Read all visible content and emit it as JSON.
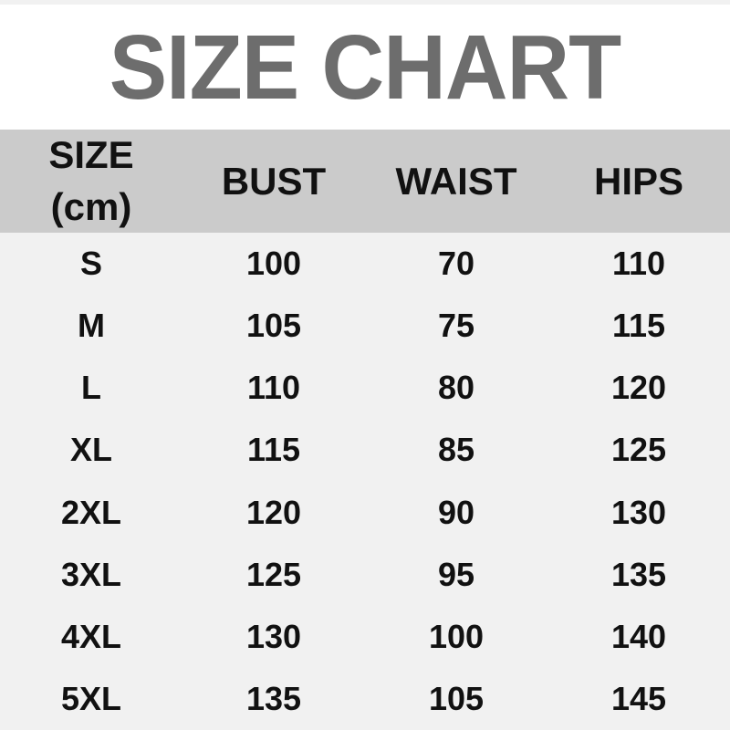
{
  "chart_data": {
    "type": "table",
    "title": "SIZE CHART",
    "columns": [
      "SIZE (cm)",
      "BUST",
      "WAIST",
      "HIPS"
    ],
    "rows": [
      [
        "S",
        100,
        70,
        110
      ],
      [
        "M",
        105,
        75,
        115
      ],
      [
        "L",
        110,
        80,
        120
      ],
      [
        "XL",
        115,
        85,
        125
      ],
      [
        "2XL",
        120,
        90,
        130
      ],
      [
        "3XL",
        125,
        95,
        135
      ],
      [
        "4XL",
        130,
        100,
        140
      ],
      [
        "5XL",
        135,
        105,
        145
      ]
    ]
  },
  "header": {
    "size_line1": "SIZE",
    "size_line2": "(cm)",
    "bust": "BUST",
    "waist": "WAIST",
    "hips": "HIPS"
  },
  "colors": {
    "title-color": "#6d6d6d",
    "title-bg": "#ffffff",
    "header-bg": "#cbcbcb",
    "body-bg": "#f1f1f1",
    "text-color": "#111111"
  }
}
